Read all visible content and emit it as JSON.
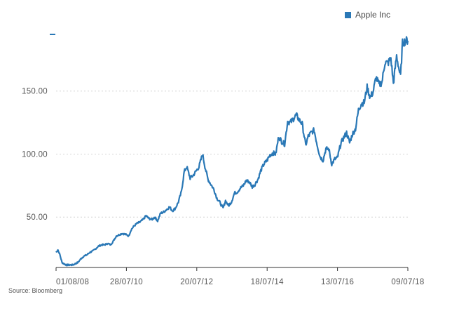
{
  "chart_data": {
    "type": "line",
    "source": "Source: Bloomberg",
    "ylim": [
      10,
      200
    ],
    "yticks": [
      50,
      100,
      150
    ],
    "ytick_labels": [
      "50.00",
      "100.00",
      "150.00"
    ],
    "xtick_labels": [
      "01/08/08",
      "28/07/10",
      "20/07/12",
      "18/07/14",
      "13/07/16",
      "09/07/18"
    ],
    "xlim": [
      "2008-08-01",
      "2018-07-09"
    ],
    "grid": "horizontal dotted",
    "legend": "top-right",
    "series": [
      {
        "name": "Apple Inc",
        "color": "#2a78b6",
        "points": [
          [
            "2008-08-01",
            22
          ],
          [
            "2008-08-20",
            24
          ],
          [
            "2008-09-10",
            20
          ],
          [
            "2008-10-01",
            14
          ],
          [
            "2008-10-20",
            13
          ],
          [
            "2008-11-15",
            12
          ],
          [
            "2008-12-15",
            12
          ],
          [
            "2009-01-20",
            12
          ],
          [
            "2009-02-15",
            13
          ],
          [
            "2009-03-15",
            14
          ],
          [
            "2009-04-15",
            17
          ],
          [
            "2009-05-15",
            19
          ],
          [
            "2009-06-15",
            20
          ],
          [
            "2009-07-15",
            22
          ],
          [
            "2009-08-15",
            23
          ],
          [
            "2009-09-15",
            25
          ],
          [
            "2009-10-15",
            27
          ],
          [
            "2009-11-15",
            28
          ],
          [
            "2009-12-15",
            28
          ],
          [
            "2010-01-15",
            29
          ],
          [
            "2010-02-15",
            28
          ],
          [
            "2010-03-15",
            31
          ],
          [
            "2010-04-15",
            35
          ],
          [
            "2010-05-15",
            36
          ],
          [
            "2010-06-15",
            37
          ],
          [
            "2010-07-28",
            36
          ],
          [
            "2010-08-20",
            35
          ],
          [
            "2010-09-15",
            40
          ],
          [
            "2010-10-15",
            43
          ],
          [
            "2010-11-15",
            45
          ],
          [
            "2010-12-15",
            46
          ],
          [
            "2011-01-15",
            48
          ],
          [
            "2011-02-15",
            51
          ],
          [
            "2011-03-15",
            49
          ],
          [
            "2011-04-15",
            48
          ],
          [
            "2011-05-15",
            50
          ],
          [
            "2011-06-15",
            47
          ],
          [
            "2011-07-15",
            53
          ],
          [
            "2011-08-15",
            54
          ],
          [
            "2011-09-15",
            56
          ],
          [
            "2011-10-15",
            58
          ],
          [
            "2011-11-15",
            55
          ],
          [
            "2011-12-15",
            57
          ],
          [
            "2012-01-15",
            62
          ],
          [
            "2012-02-15",
            70
          ],
          [
            "2012-03-15",
            86
          ],
          [
            "2012-04-10",
            90
          ],
          [
            "2012-05-15",
            81
          ],
          [
            "2012-06-15",
            83
          ],
          [
            "2012-07-20",
            87
          ],
          [
            "2012-08-15",
            90
          ],
          [
            "2012-09-20",
            100
          ],
          [
            "2012-10-15",
            90
          ],
          [
            "2012-11-15",
            80
          ],
          [
            "2012-12-15",
            76
          ],
          [
            "2013-01-15",
            72
          ],
          [
            "2013-02-15",
            65
          ],
          [
            "2013-03-15",
            62
          ],
          [
            "2013-04-20",
            57
          ],
          [
            "2013-05-15",
            63
          ],
          [
            "2013-06-15",
            59
          ],
          [
            "2013-07-15",
            62
          ],
          [
            "2013-08-15",
            69
          ],
          [
            "2013-09-15",
            70
          ],
          [
            "2013-10-15",
            73
          ],
          [
            "2013-11-15",
            75
          ],
          [
            "2013-12-15",
            79
          ],
          [
            "2014-01-15",
            78
          ],
          [
            "2014-02-15",
            74
          ],
          [
            "2014-03-15",
            76
          ],
          [
            "2014-04-15",
            80
          ],
          [
            "2014-05-15",
            87
          ],
          [
            "2014-06-15",
            92
          ],
          [
            "2014-07-18",
            95
          ],
          [
            "2014-08-15",
            99
          ],
          [
            "2014-09-15",
            101
          ],
          [
            "2014-10-15",
            100
          ],
          [
            "2014-11-15",
            114
          ],
          [
            "2014-12-15",
            110
          ],
          [
            "2015-01-15",
            108
          ],
          [
            "2015-02-15",
            126
          ],
          [
            "2015-03-15",
            125
          ],
          [
            "2015-04-15",
            128
          ],
          [
            "2015-05-15",
            131
          ],
          [
            "2015-06-15",
            127
          ],
          [
            "2015-07-15",
            124
          ],
          [
            "2015-08-20",
            107
          ],
          [
            "2015-09-15",
            114
          ],
          [
            "2015-10-15",
            117
          ],
          [
            "2015-11-15",
            119
          ],
          [
            "2015-12-15",
            108
          ],
          [
            "2016-01-15",
            98
          ],
          [
            "2016-02-15",
            95
          ],
          [
            "2016-03-15",
            104
          ],
          [
            "2016-04-15",
            104
          ],
          [
            "2016-05-15",
            92
          ],
          [
            "2016-06-15",
            96
          ],
          [
            "2016-07-13",
            97
          ],
          [
            "2016-08-15",
            108
          ],
          [
            "2016-09-15",
            113
          ],
          [
            "2016-10-15",
            117
          ],
          [
            "2016-11-15",
            109
          ],
          [
            "2016-12-15",
            116
          ],
          [
            "2017-01-15",
            120
          ],
          [
            "2017-02-15",
            135
          ],
          [
            "2017-03-15",
            140
          ],
          [
            "2017-04-15",
            141
          ],
          [
            "2017-05-15",
            153
          ],
          [
            "2017-06-15",
            145
          ],
          [
            "2017-07-15",
            149
          ],
          [
            "2017-08-15",
            161
          ],
          [
            "2017-09-15",
            155
          ],
          [
            "2017-10-15",
            157
          ],
          [
            "2017-11-15",
            173
          ],
          [
            "2017-12-15",
            172
          ],
          [
            "2018-01-15",
            176
          ],
          [
            "2018-02-10",
            156
          ],
          [
            "2018-03-15",
            178
          ],
          [
            "2018-04-15",
            165
          ],
          [
            "2018-04-25",
            162
          ],
          [
            "2018-05-15",
            188
          ],
          [
            "2018-06-15",
            190
          ],
          [
            "2018-07-09",
            190
          ]
        ]
      }
    ]
  },
  "legend_swatch_color": "#2a78b6"
}
